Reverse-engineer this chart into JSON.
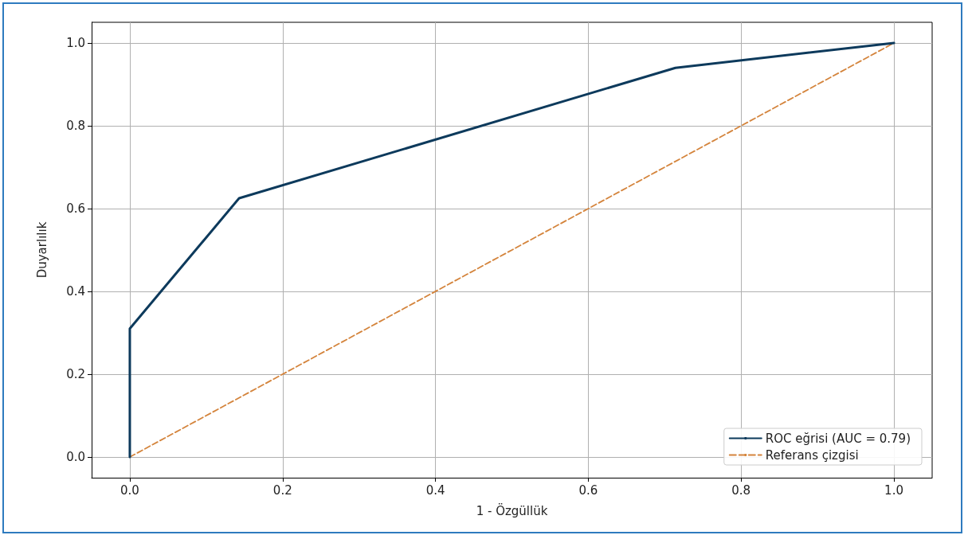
{
  "chart_data": {
    "type": "line",
    "xlabel": "1 - Özgüllük",
    "ylabel": "Duyarlılık",
    "series": [
      {
        "name": "ROC eğrisi (AUC = 0.79)",
        "color": "#0d3a5c",
        "x": [
          0,
          0,
          0.143,
          0.714,
          1
        ],
        "values": [
          0,
          0.31,
          0.625,
          0.94,
          1
        ],
        "line_style": "solid"
      },
      {
        "name": "Referans çizgisi",
        "color": "#d4843c",
        "x": [
          0,
          1
        ],
        "values": [
          0,
          1
        ],
        "line_style": "dashed"
      }
    ],
    "xlim": [
      -0.05,
      1.05
    ],
    "ylim": [
      -0.05,
      1.05
    ],
    "xticks": [
      {
        "value": 0,
        "label": "0.0"
      },
      {
        "value": 0.2,
        "label": "0.2"
      },
      {
        "value": 0.4,
        "label": "0.4"
      },
      {
        "value": 0.6,
        "label": "0.6"
      },
      {
        "value": 0.8,
        "label": "0.8"
      },
      {
        "value": 1,
        "label": "1.0"
      }
    ],
    "yticks": [
      {
        "value": 0,
        "label": "0.0"
      },
      {
        "value": 0.2,
        "label": "0.2"
      },
      {
        "value": 0.4,
        "label": "0.4"
      },
      {
        "value": 0.6,
        "label": "0.6"
      },
      {
        "value": 0.8,
        "label": "0.8"
      },
      {
        "value": 1,
        "label": "1.0"
      }
    ],
    "grid": true,
    "legend": "bottom right",
    "marker": "none"
  }
}
